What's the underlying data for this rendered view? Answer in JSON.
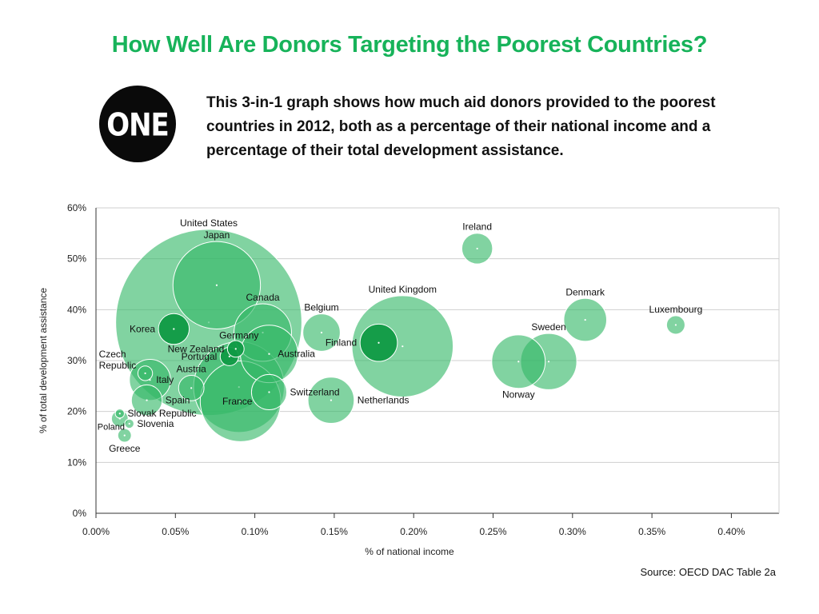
{
  "title": "How Well Are Donors Targeting the Poorest Countries?",
  "logo": {
    "text": "ONE"
  },
  "intro": "This 3-in-1 graph shows how much aid donors provided to the poorest countries in 2012, both as a percentage of their national income and a percentage of their total development assistance.",
  "source": "Source: OECD DAC Table 2a",
  "colors": {
    "title": "#17b35a",
    "bubble": "#34b868",
    "bubble_dark": "#0f9a45"
  },
  "chart_data": {
    "type": "scatter",
    "xlabel": "% of national income",
    "ylabel": "% of total development assistance",
    "xlim": [
      0,
      0.43
    ],
    "ylim": [
      0,
      60
    ],
    "xticks": [
      {
        "v": 0.0,
        "label": "0.00%"
      },
      {
        "v": 0.05,
        "label": "0.05%"
      },
      {
        "v": 0.1,
        "label": "0.10%"
      },
      {
        "v": 0.15,
        "label": "0.15%"
      },
      {
        "v": 0.2,
        "label": "0.20%"
      },
      {
        "v": 0.25,
        "label": "0.25%"
      },
      {
        "v": 0.3,
        "label": "0.30%"
      },
      {
        "v": 0.35,
        "label": "0.35%"
      },
      {
        "v": 0.4,
        "label": "0.40%"
      }
    ],
    "yticks": [
      {
        "v": 0,
        "label": "0%"
      },
      {
        "v": 10,
        "label": "10%"
      },
      {
        "v": 20,
        "label": "20%"
      },
      {
        "v": 30,
        "label": "30%"
      },
      {
        "v": 40,
        "label": "40%"
      },
      {
        "v": 50,
        "label": "50%"
      },
      {
        "v": 60,
        "label": "60%"
      }
    ],
    "grid": true,
    "size_encoding": "bubble area",
    "points": [
      {
        "name": "United States",
        "x": 0.071,
        "y": 37.5,
        "size": 12,
        "label_pos": "above"
      },
      {
        "name": "Japan",
        "x": 0.076,
        "y": 44.8,
        "size": 2.6,
        "label_pos": "above"
      },
      {
        "name": "Germany",
        "x": 0.09,
        "y": 24.8,
        "size": 2.8,
        "label_pos": "above"
      },
      {
        "name": "France",
        "x": 0.091,
        "y": 22.0,
        "size": 2.2,
        "label_pos": "left-in"
      },
      {
        "name": "United Kingdom",
        "x": 0.193,
        "y": 32.8,
        "size": 3.5,
        "label_pos": "above"
      },
      {
        "name": "Canada",
        "x": 0.105,
        "y": 35.5,
        "size": 1.1,
        "label_pos": "above"
      },
      {
        "name": "Australia",
        "x": 0.109,
        "y": 31.3,
        "size": 1.1,
        "label_pos": "right-in"
      },
      {
        "name": "Switzerland",
        "x": 0.109,
        "y": 23.8,
        "size": 0.4,
        "label_pos": "right"
      },
      {
        "name": "Netherlands",
        "x": 0.148,
        "y": 22.2,
        "size": 0.7,
        "label_pos": "right"
      },
      {
        "name": "Belgium",
        "x": 0.142,
        "y": 35.5,
        "size": 0.45,
        "label_pos": "above"
      },
      {
        "name": "Finland",
        "x": 0.178,
        "y": 33.5,
        "size": 0.45,
        "label_pos": "left",
        "dark": true
      },
      {
        "name": "Ireland",
        "x": 0.24,
        "y": 52.0,
        "size": 0.3,
        "label_pos": "above"
      },
      {
        "name": "Norway",
        "x": 0.266,
        "y": 29.8,
        "size": 0.95,
        "label_pos": "below"
      },
      {
        "name": "Sweden",
        "x": 0.285,
        "y": 29.8,
        "size": 1.05,
        "label_pos": "above"
      },
      {
        "name": "Denmark",
        "x": 0.308,
        "y": 38.0,
        "size": 0.6,
        "label_pos": "above"
      },
      {
        "name": "Luxembourg",
        "x": 0.365,
        "y": 37.0,
        "size": 0.1,
        "label_pos": "above"
      },
      {
        "name": "Korea",
        "x": 0.049,
        "y": 36.2,
        "size": 0.3,
        "label_pos": "left",
        "dark": true
      },
      {
        "name": "New Zealand",
        "x": 0.088,
        "y": 32.3,
        "size": 0.08,
        "label_pos": "left",
        "dark": true
      },
      {
        "name": "Portugal",
        "x": 0.084,
        "y": 30.8,
        "size": 0.1,
        "label_pos": "left",
        "dark": true
      },
      {
        "name": "Austria",
        "x": 0.06,
        "y": 24.6,
        "size": 0.2,
        "label_pos": "above"
      },
      {
        "name": "Italy",
        "x": 0.034,
        "y": 26.2,
        "size": 0.55,
        "label_pos": "right-in"
      },
      {
        "name": "Czech Republic",
        "x": 0.031,
        "y": 27.5,
        "size": 0.06,
        "label_pos": "upper-left"
      },
      {
        "name": "Spain",
        "x": 0.032,
        "y": 22.2,
        "size": 0.3,
        "label_pos": "right"
      },
      {
        "name": "Slovak Republic",
        "x": 0.015,
        "y": 19.6,
        "size": 0.02,
        "label_pos": "right"
      },
      {
        "name": "Poland",
        "x": 0.015,
        "y": 18.6,
        "size": 0.08,
        "label_pos": "below-left"
      },
      {
        "name": "Slovenia",
        "x": 0.021,
        "y": 17.6,
        "size": 0.02,
        "label_pos": "right"
      },
      {
        "name": "Greece",
        "x": 0.018,
        "y": 15.3,
        "size": 0.05,
        "label_pos": "below"
      }
    ]
  }
}
